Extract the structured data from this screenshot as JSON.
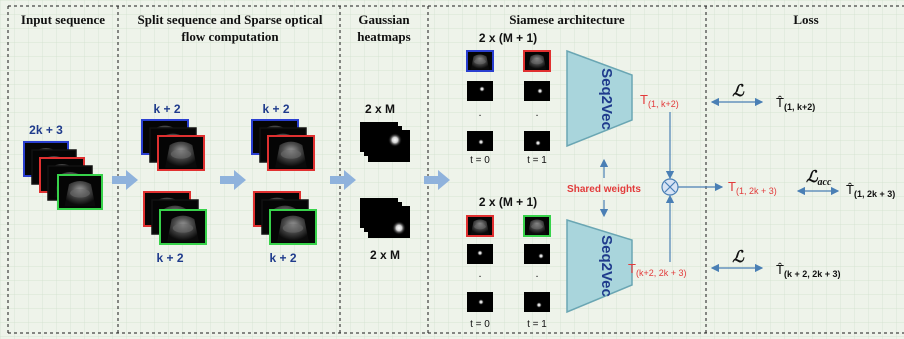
{
  "colors": {
    "grid_bg": "#eef3ea",
    "grid_line": "#cfe0cc",
    "arrow_fill": "#8fb2dc",
    "thin_arrow": "#4a7fb5",
    "seq2vec_fill": "#a9d5dc",
    "seq2vec_stroke": "#6aa6b3",
    "label_blue": "#1f3b8c",
    "label_red": "#e23b3b",
    "frame_blue": "#2a3fd0",
    "frame_red": "#e03030",
    "frame_green": "#37d24a",
    "combine_fill": "#d7e3f4",
    "combine_stroke": "#4a7fb5"
  },
  "icons": {
    "frame_icon": "ultrasound-frame",
    "heatmap_icon": "gaussian-heatmap",
    "combine_icon": "circled-times"
  },
  "sections": {
    "input": {
      "title": "Input sequence",
      "count": "2k + 3"
    },
    "split": {
      "title_line1": "Split sequence and Sparse optical",
      "title_line2": "flow computation",
      "top_left": "k  + 2",
      "top_right": "k  + 2",
      "bottom_left": "k  + 2",
      "bottom_right": "k  + 2"
    },
    "heatmaps": {
      "title_line1": "Gaussian",
      "title_line2": "heatmaps",
      "top": "2 x M",
      "bottom": "2 x M"
    },
    "siamese": {
      "title": "Siamese architecture",
      "top_count": "2 x (M + 1)",
      "bottom_count": "2 x (M + 1)",
      "dots": ".",
      "t0": "t = 0",
      "t1": "t = 1",
      "seq2vec": "Seq2Vec",
      "shared": "Shared weights",
      "t_top": "T",
      "t_top_sub": "(1, k+2)",
      "t_bottom": "T",
      "t_bottom_sub": "(k+2, 2k + 3)"
    },
    "loss": {
      "title": "Loss",
      "l_symbol": "ℒ",
      "lacc_symbol": "ℒ",
      "lacc_sub": "acc",
      "t_mid": "T",
      "t_mid_sub": "(1, 2k + 3)",
      "hat_top": "T̂",
      "hat_top_sub": "(1, k+2)",
      "hat_mid": "T̂",
      "hat_mid_sub": "(1, 2k + 3)",
      "hat_bottom": "T̂",
      "hat_bottom_sub": "(k + 2, 2k + 3)"
    }
  }
}
